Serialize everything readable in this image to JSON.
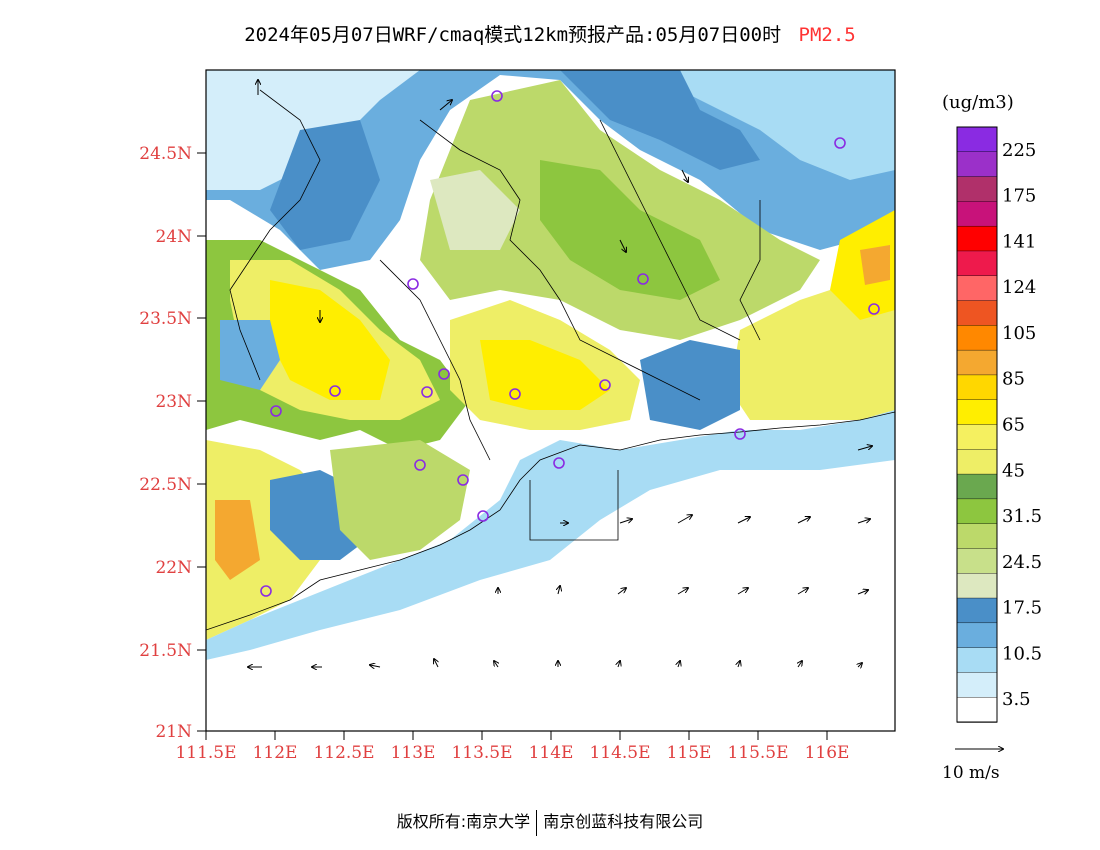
{
  "title": {
    "main": "2024年05月07日WRF/cmaq模式12km预报产品:05月07日00时",
    "variable": "PM2.5"
  },
  "axes": {
    "lat_ticks": [
      "24.5N",
      "24N",
      "23.5N",
      "23N",
      "22.5N",
      "22N",
      "21.5N",
      "21N"
    ],
    "lon_ticks": [
      "111.5E",
      "112E",
      "112.5E",
      "113E",
      "113.5E",
      "114E",
      "114.5E",
      "115E",
      "115.5E",
      "116E"
    ]
  },
  "colorbar": {
    "unit": "(ug/m3)",
    "labels": [
      "225",
      "175",
      "141",
      "124",
      "105",
      "85",
      "65",
      "45",
      "31.5",
      "24.5",
      "17.5",
      "10.5",
      "3.5"
    ],
    "colors": [
      "#8a2be2",
      "#9b30c9",
      "#b0306a",
      "#c8127a",
      "#ff0000",
      "#ee1a4c",
      "#ff6666",
      "#ee5522",
      "#ff8800",
      "#f4a830",
      "#ffd700",
      "#ffee00",
      "#f5f060",
      "#eeee66",
      "#6aa84f",
      "#8dc63f",
      "#bcd96a",
      "#c8e08a",
      "#dde8c0",
      "#4a8fc8",
      "#6aaede",
      "#a8dcf4",
      "#d4eefa",
      "#ffffff"
    ]
  },
  "wind_legend": {
    "label": "10 m/s"
  },
  "footer": {
    "left": "版权所有:南京大学",
    "right": "南京创蓝科技有限公司"
  }
}
